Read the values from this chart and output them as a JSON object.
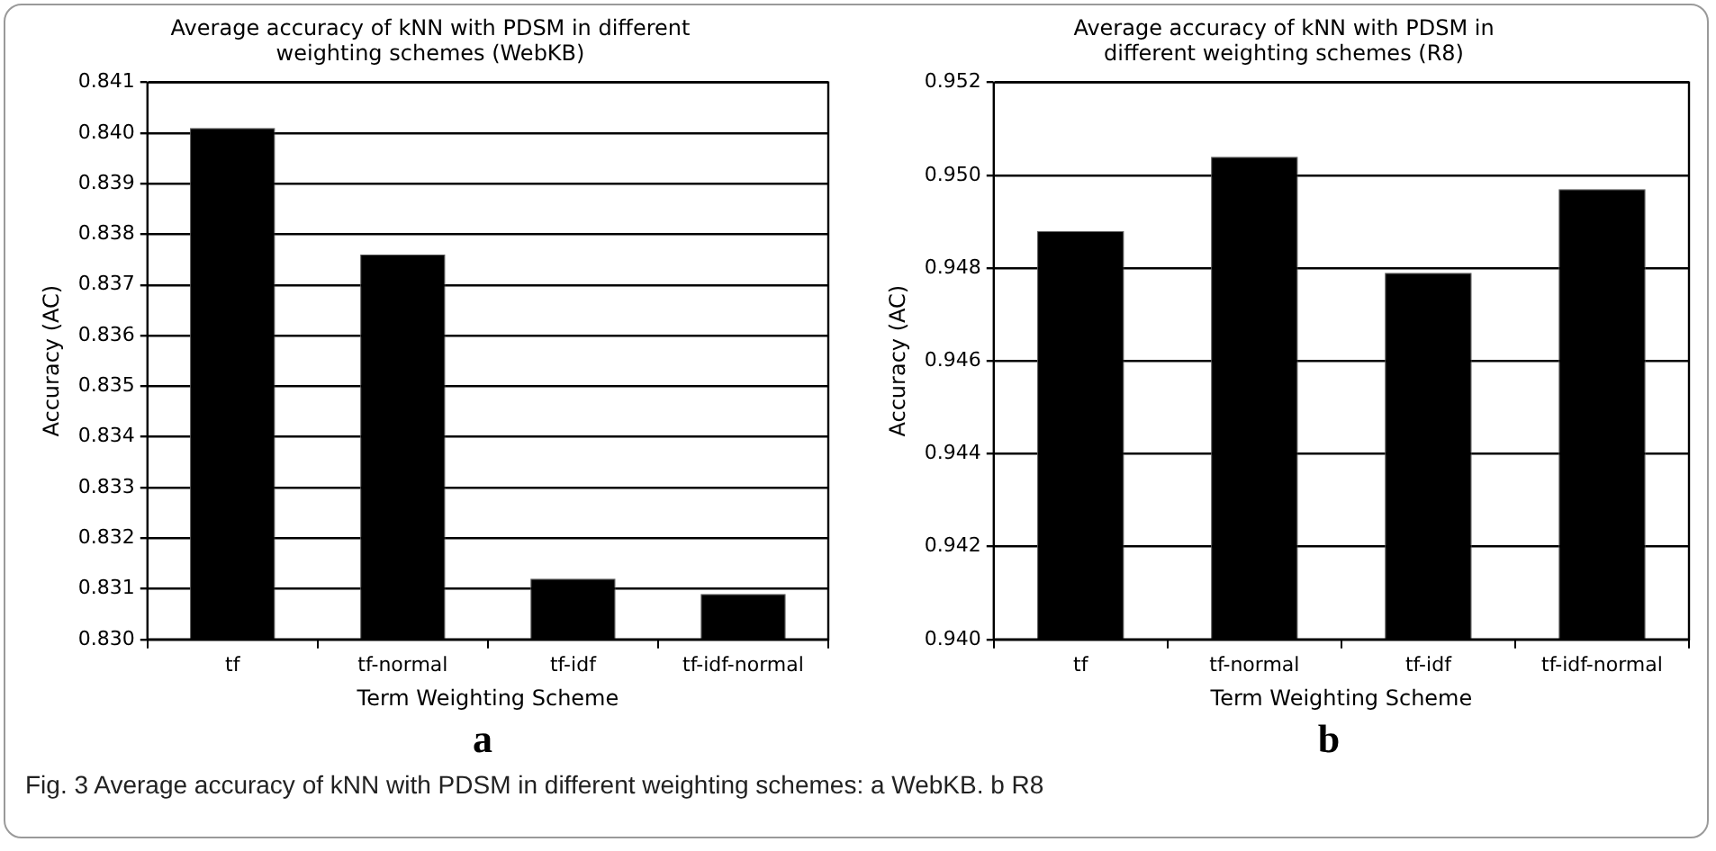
{
  "chart_data": [
    {
      "type": "bar",
      "title": "Average accuracy of kNN with PDSM in different\nweighting schemes (WebKB)",
      "xlabel": "Term Weighting Scheme",
      "ylabel": "Accuracy (AC)",
      "categories": [
        "tf",
        "tf-normal",
        "tf-idf",
        "tf-idf-normal"
      ],
      "values": [
        0.8401,
        0.8376,
        0.8312,
        0.8309
      ],
      "color": "#000000",
      "ylim": [
        0.83,
        0.841
      ],
      "yticks": [
        {
          "value": 0.83,
          "label": "0.830"
        },
        {
          "value": 0.831,
          "label": "0.831"
        },
        {
          "value": 0.832,
          "label": "0.832"
        },
        {
          "value": 0.833,
          "label": "0.833"
        },
        {
          "value": 0.834,
          "label": "0.834"
        },
        {
          "value": 0.835,
          "label": "0.835"
        },
        {
          "value": 0.836,
          "label": "0.836"
        },
        {
          "value": 0.837,
          "label": "0.837"
        },
        {
          "value": 0.838,
          "label": "0.838"
        },
        {
          "value": 0.839,
          "label": "0.839"
        },
        {
          "value": 0.84,
          "label": "0.840"
        },
        {
          "value": 0.841,
          "label": "0.841"
        }
      ],
      "grid": "y",
      "annotations": [
        "a",
        "Fig. 3  Average accuracy of kNN with PDSM in different weighting schemes: a WebKB. b R8"
      ]
    },
    {
      "type": "bar",
      "title": "Average accuracy of kNN with PDSM in\ndifferent weighting schemes (R8)",
      "xlabel": "Term Weighting Scheme",
      "ylabel": "Accuracy (AC)",
      "categories": [
        "tf",
        "tf-normal",
        "tf-idf",
        "tf-idf-normal"
      ],
      "values": [
        0.9488,
        0.9504,
        0.9479,
        0.9497
      ],
      "color": "#000000",
      "ylim": [
        0.94,
        0.952
      ],
      "yticks": [
        {
          "value": 0.94,
          "label": "0.940"
        },
        {
          "value": 0.942,
          "label": "0.942"
        },
        {
          "value": 0.944,
          "label": "0.944"
        },
        {
          "value": 0.946,
          "label": "0.946"
        },
        {
          "value": 0.948,
          "label": "0.948"
        },
        {
          "value": 0.95,
          "label": "0.950"
        },
        {
          "value": 0.952,
          "label": "0.952"
        }
      ],
      "grid": "y",
      "annotations": [
        "b"
      ]
    }
  ]
}
